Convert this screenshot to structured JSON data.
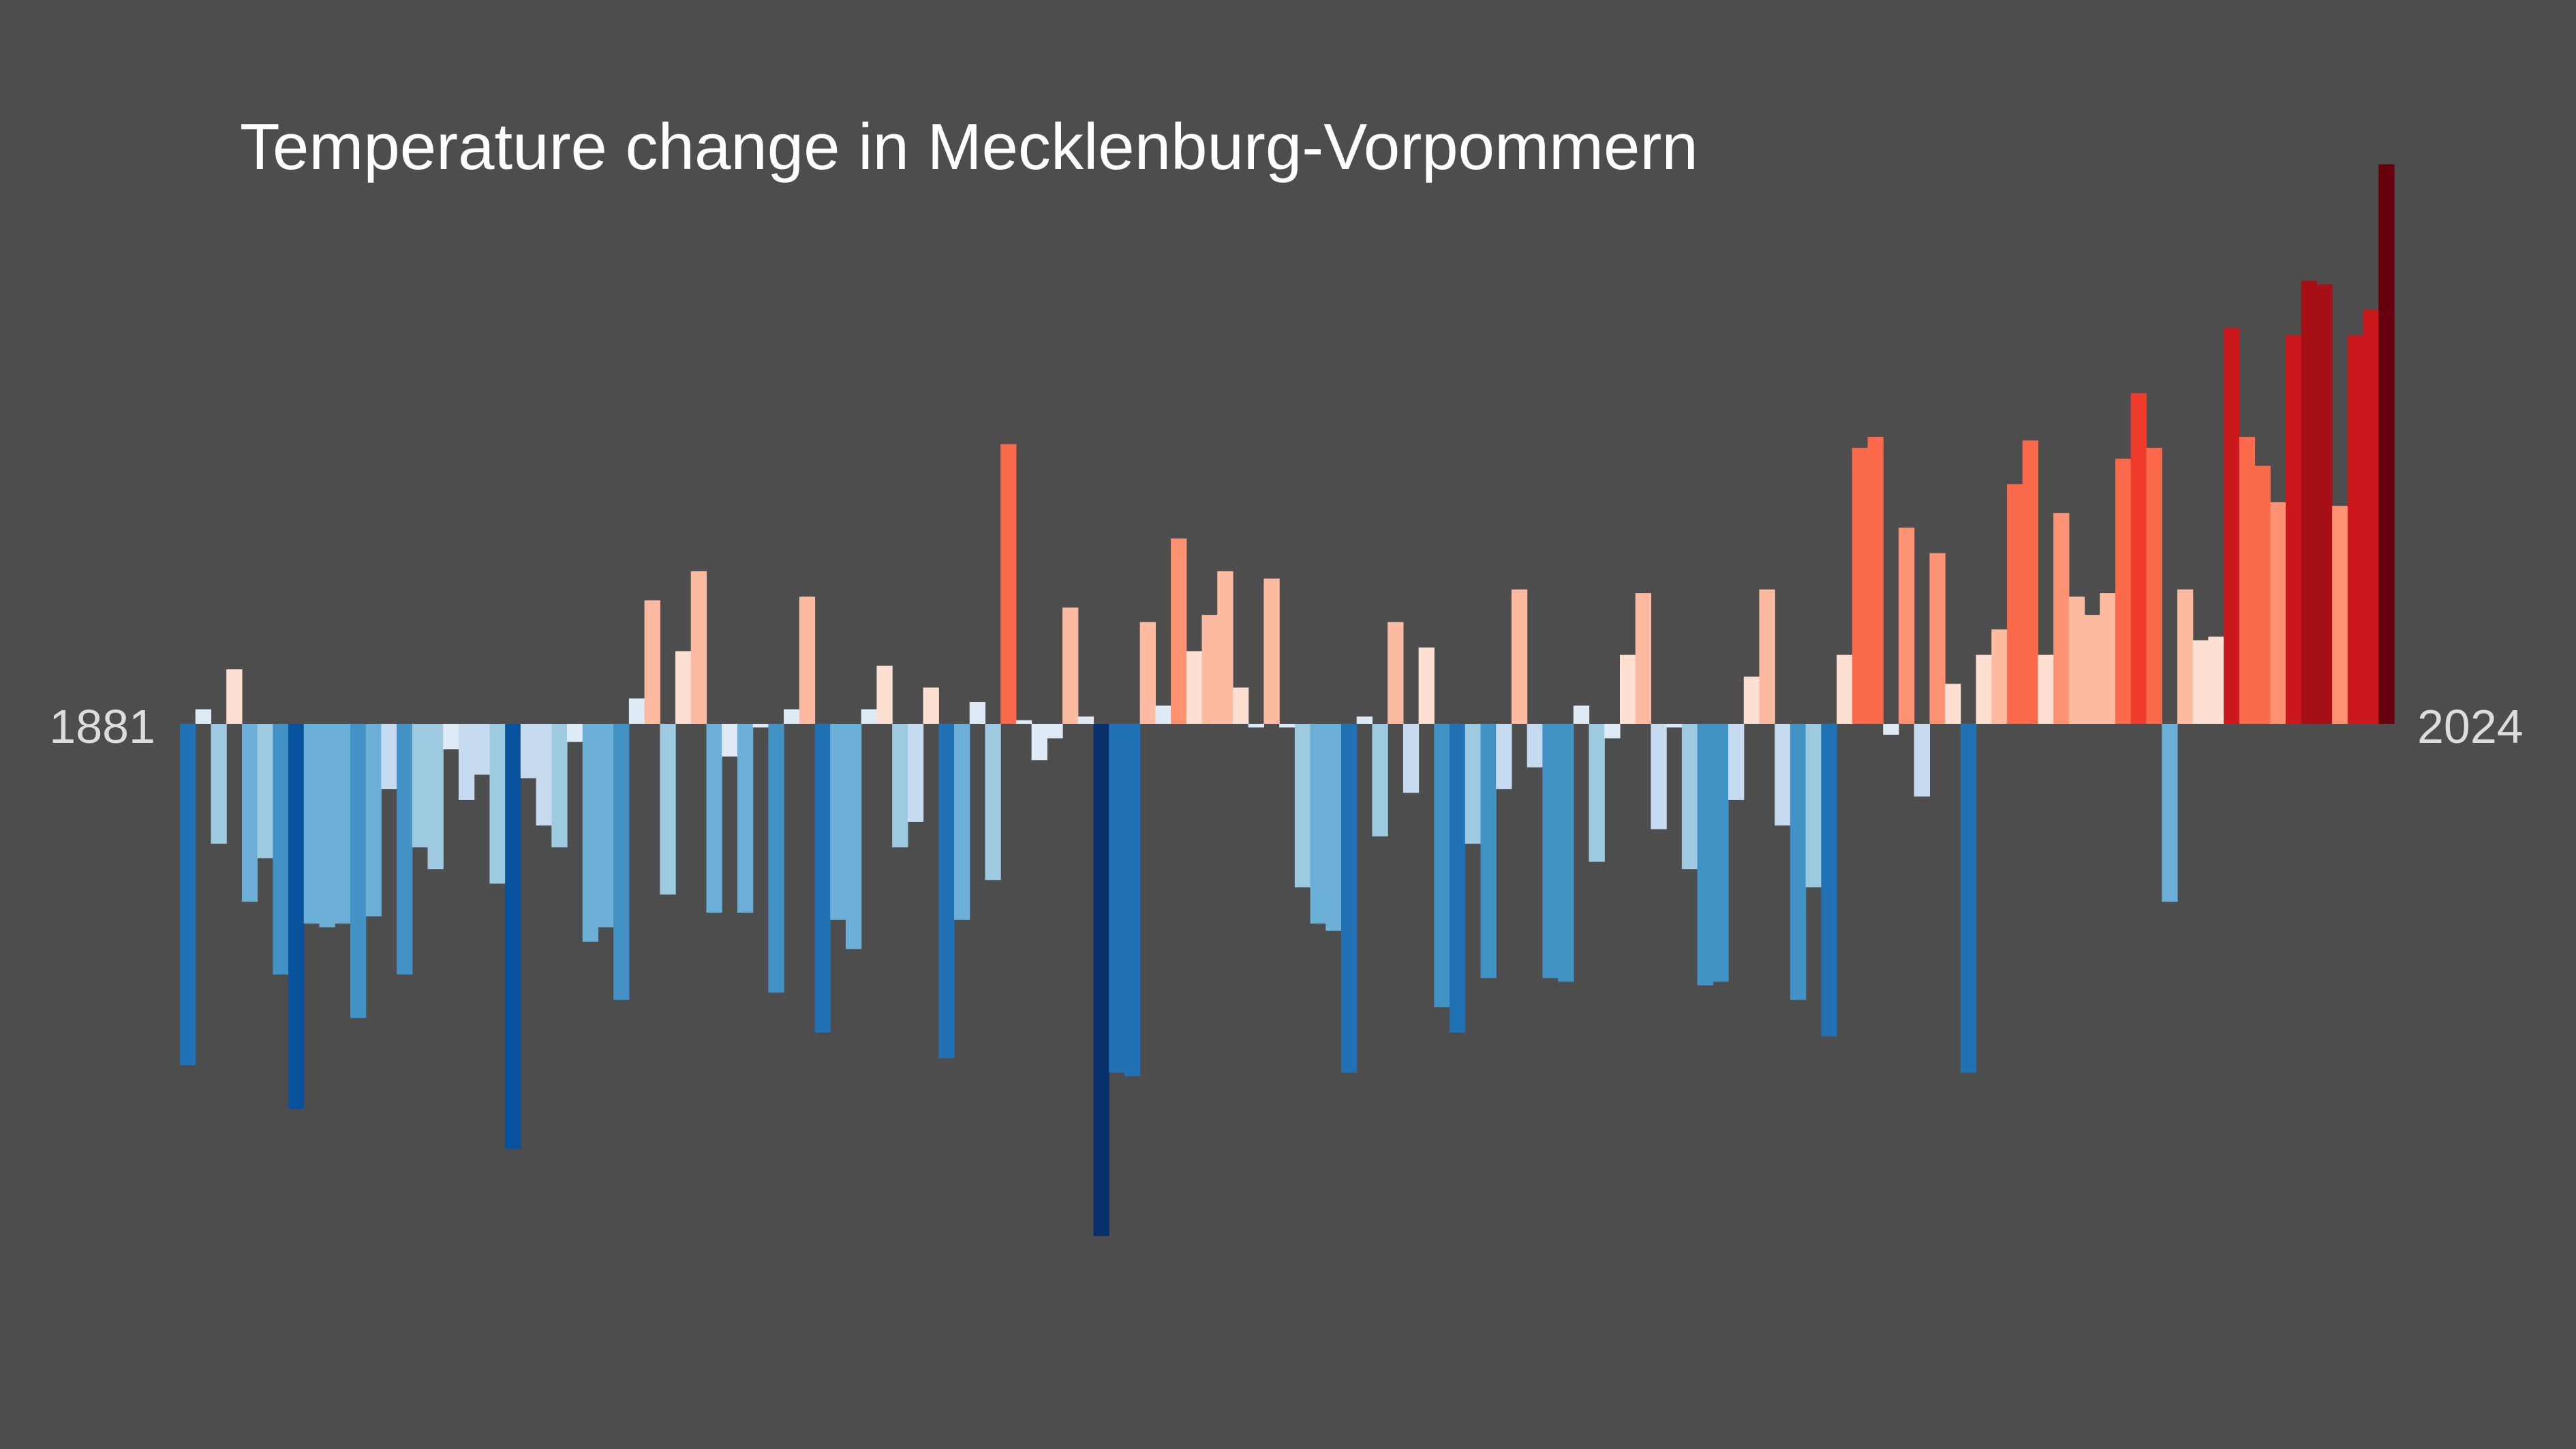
{
  "chart_data": {
    "type": "bar",
    "title": "Temperature change in Mecklenburg-Vorpommern",
    "xlabel": "",
    "ylabel": "",
    "start_label": "1881",
    "end_label": "2024",
    "x_start": 1881,
    "x_end": 2024,
    "grid": false,
    "legend": "none",
    "ylim": [
      -1.4,
      1.45
    ],
    "background_color": "#4d4d4d",
    "color_scale": [
      "#08306b",
      "#08519c",
      "#2171b5",
      "#4292c6",
      "#6baed6",
      "#9ecae1",
      "#c6dbef",
      "#deebf7",
      "#fee0d2",
      "#fcbba1",
      "#fc9272",
      "#fb6a4a",
      "#ef3b2c",
      "#cb181d",
      "#a50f15",
      "#67000d"
    ],
    "values": [
      -0.94,
      0.04,
      -0.33,
      0.15,
      -0.49,
      -0.37,
      -0.69,
      -1.06,
      -0.55,
      -0.56,
      -0.55,
      -0.81,
      -0.53,
      -0.18,
      -0.69,
      -0.34,
      -0.4,
      -0.07,
      -0.21,
      -0.14,
      -0.44,
      -1.17,
      -0.15,
      -0.28,
      -0.34,
      -0.05,
      -0.6,
      -0.56,
      -0.76,
      0.07,
      0.34,
      -0.47,
      0.2,
      0.42,
      -0.52,
      -0.09,
      -0.52,
      -0.01,
      -0.74,
      0.04,
      0.35,
      -0.85,
      -0.54,
      -0.62,
      0.04,
      0.16,
      -0.34,
      -0.27,
      0.1,
      -0.92,
      -0.54,
      0.06,
      -0.43,
      0.77,
      0.01,
      -0.1,
      -0.04,
      0.32,
      0.02,
      -1.41,
      -0.96,
      -0.97,
      0.28,
      0.05,
      0.51,
      0.2,
      0.3,
      0.42,
      0.1,
      -0.01,
      0.4,
      -0.01,
      -0.45,
      -0.55,
      -0.57,
      -0.96,
      0.02,
      -0.31,
      0.28,
      -0.19,
      0.21,
      -0.78,
      -0.85,
      -0.33,
      -0.7,
      -0.18,
      0.37,
      -0.12,
      -0.7,
      -0.71,
      0.05,
      -0.38,
      -0.04,
      0.19,
      0.36,
      -0.29,
      -0.01,
      -0.4,
      -0.72,
      -0.71,
      -0.21,
      0.13,
      0.37,
      -0.28,
      -0.76,
      -0.45,
      -0.86,
      0.19,
      0.76,
      0.79,
      -0.03,
      0.54,
      -0.2,
      0.47,
      0.11,
      -0.96,
      0.19,
      0.26,
      0.66,
      0.78,
      0.19,
      0.58,
      0.35,
      0.3,
      0.36,
      0.73,
      0.91,
      0.76,
      -0.49,
      0.37,
      0.23,
      0.24,
      1.09,
      0.79,
      0.71,
      0.61,
      1.07,
      1.22,
      1.21,
      0.6,
      1.07,
      1.14,
      1.54
    ]
  }
}
